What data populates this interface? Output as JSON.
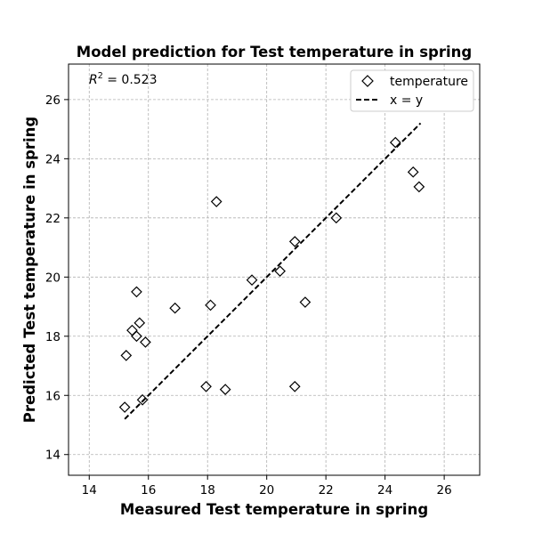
{
  "chart_data": {
    "type": "scatter",
    "title": "Model prediction for Test temperature in spring",
    "xlabel": "Measured Test temperature in spring",
    "ylabel": "Predicted Test temperature in spring",
    "xlim": [
      13.3,
      27.2
    ],
    "ylim": [
      13.3,
      27.2
    ],
    "xticks": [
      14,
      16,
      18,
      20,
      22,
      24,
      26
    ],
    "yticks": [
      14,
      16,
      18,
      20,
      22,
      24,
      26
    ],
    "grid": true,
    "legend_position": "top-right",
    "annotation": {
      "prefix": "R",
      "superscript": "2",
      "suffix": " = 0.523"
    },
    "series": [
      {
        "name": "temperature",
        "marker": "diamond-open",
        "color": "#000000",
        "points": [
          {
            "x": 15.2,
            "y": 15.6
          },
          {
            "x": 15.25,
            "y": 17.35
          },
          {
            "x": 15.45,
            "y": 18.2
          },
          {
            "x": 15.6,
            "y": 18.0
          },
          {
            "x": 15.6,
            "y": 19.5
          },
          {
            "x": 15.7,
            "y": 18.45
          },
          {
            "x": 15.8,
            "y": 15.85
          },
          {
            "x": 15.9,
            "y": 17.8
          },
          {
            "x": 16.9,
            "y": 18.95
          },
          {
            "x": 17.95,
            "y": 16.3
          },
          {
            "x": 18.1,
            "y": 19.05
          },
          {
            "x": 18.3,
            "y": 22.55
          },
          {
            "x": 18.6,
            "y": 16.2
          },
          {
            "x": 19.5,
            "y": 19.9
          },
          {
            "x": 20.45,
            "y": 20.2
          },
          {
            "x": 20.95,
            "y": 21.2
          },
          {
            "x": 20.95,
            "y": 16.3
          },
          {
            "x": 21.3,
            "y": 19.15
          },
          {
            "x": 22.35,
            "y": 22.0
          },
          {
            "x": 24.35,
            "y": 24.55
          },
          {
            "x": 24.95,
            "y": 23.55
          },
          {
            "x": 25.15,
            "y": 23.05
          }
        ]
      },
      {
        "name": "x = y",
        "line_style": "dashed",
        "color": "#000000",
        "points": [
          {
            "x": 15.2,
            "y": 15.2
          },
          {
            "x": 25.2,
            "y": 25.2
          }
        ]
      }
    ]
  }
}
